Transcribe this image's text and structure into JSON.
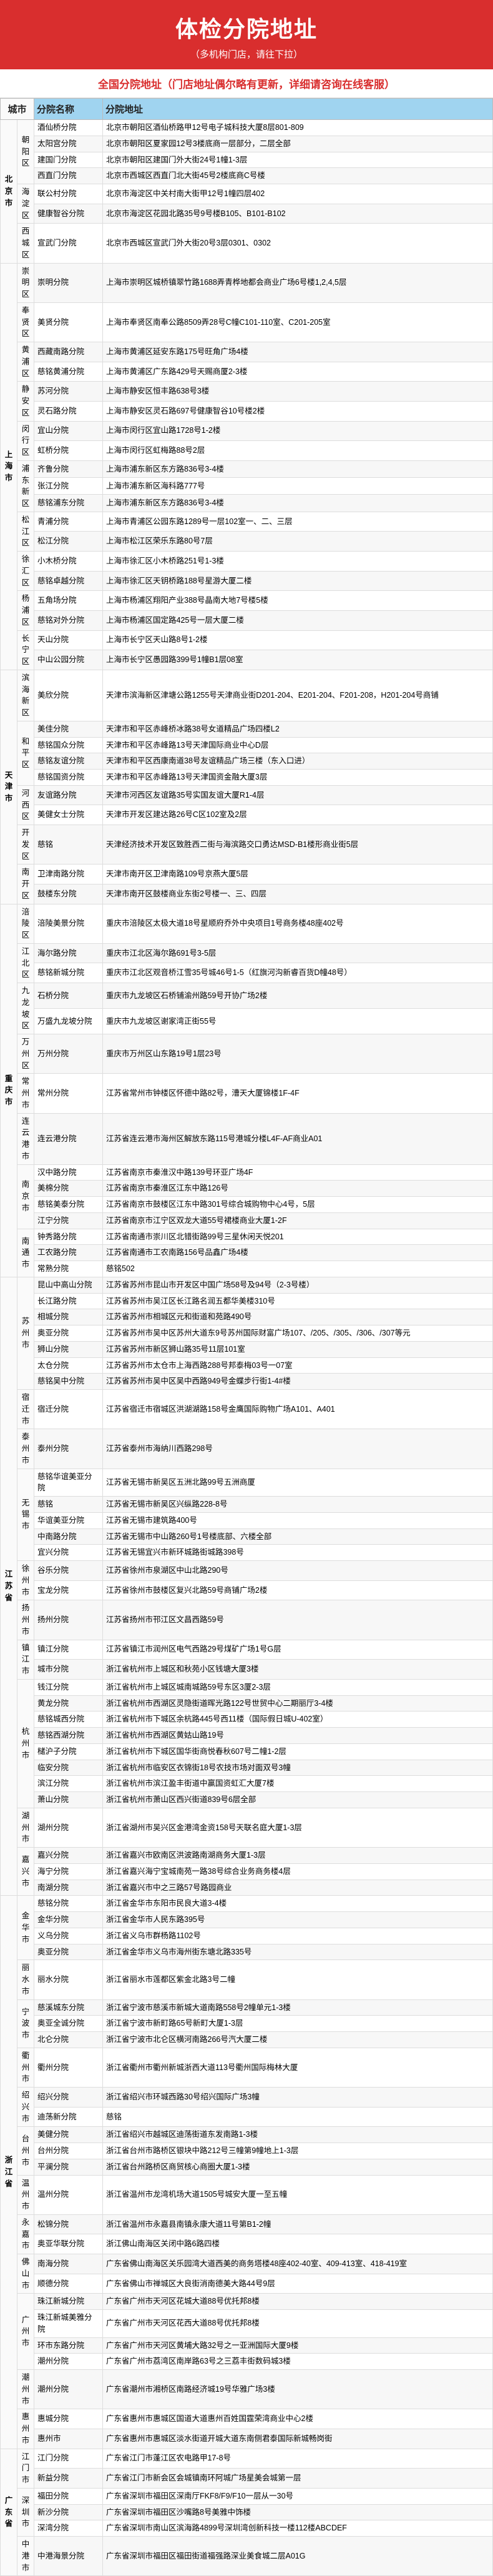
{
  "header": {
    "title": "体检分院地址",
    "subtitle": "（多机构门店，请往下拉）"
  },
  "subheader": "全国分院地址（门店地址偶尔略有更新，详细请咨询在线客服）",
  "columns": [
    "城市",
    "分院名称",
    "分院地址"
  ],
  "rows": [
    {
      "prov": "北京市",
      "city": "朝阳区",
      "branch": "酒仙桥分院",
      "addr": "北京市朝阳区酒仙桥路甲12号电子城科技大厦8层801-809"
    },
    {
      "prov": "",
      "city": "",
      "branch": "太阳宫分院",
      "addr": "北京市朝阳区夏家园12号3楼底商一层部分，二层全部"
    },
    {
      "prov": "",
      "city": "",
      "branch": "建国门分院",
      "addr": "北京市朝阳区建国门外大街24号1幢1-3层"
    },
    {
      "prov": "",
      "city": "",
      "branch": "西直门分院",
      "addr": "北京市西城区西直门北大街45号2楼底商C号楼"
    },
    {
      "prov": "",
      "city": "海淀区",
      "branch": "联公村分院",
      "addr": "北京市海淀区中关村南大街甲12号1幢四层402"
    },
    {
      "prov": "",
      "city": "",
      "branch": "健康智谷分院",
      "addr": "北京市海淀区花园北路35号9号楼B105、B101-B102"
    },
    {
      "prov": "",
      "city": "西城区",
      "branch": "宣武门分院",
      "addr": "北京市西城区宣武门外大街20号3层0301、0302"
    },
    {
      "prov": "上海市",
      "city": "崇明区",
      "branch": "崇明分院",
      "addr": "上海市崇明区城桥镇翠竹路1688弄青桦地都会商业广场6号楼1,2,4,5层"
    },
    {
      "prov": "",
      "city": "奉贤区",
      "branch": "美贤分院",
      "addr": "上海市奉贤区南奉公路8509弄28号C幢C101-110室、C201-205室"
    },
    {
      "prov": "",
      "city": "黄浦区",
      "branch": "西藏南路分院",
      "addr": "上海市黄浦区延安东路175号旺角广场4楼"
    },
    {
      "prov": "",
      "city": "",
      "branch": "慈铭黄浦分院",
      "addr": "上海市黄浦区广东路429号天赐商厦2-3楼"
    },
    {
      "prov": "",
      "city": "静安区",
      "branch": "苏河分院",
      "addr": "上海市静安区恒丰路638号3楼"
    },
    {
      "prov": "",
      "city": "",
      "branch": "灵石路分院",
      "addr": "上海市静安区灵石路697号健康智谷10号楼2楼"
    },
    {
      "prov": "",
      "city": "闵行区",
      "branch": "宜山分院",
      "addr": "上海市闵行区宜山路1728号1-2楼"
    },
    {
      "prov": "",
      "city": "",
      "branch": "虹桥分院",
      "addr": "上海市闵行区虹梅路88号2层"
    },
    {
      "prov": "",
      "city": "浦东新区",
      "branch": "齐鲁分院",
      "addr": "上海市浦东新区东方路836号3-4楼"
    },
    {
      "prov": "",
      "city": "",
      "branch": "张江分院",
      "addr": "上海市浦东新区海科路777号"
    },
    {
      "prov": "",
      "city": "",
      "branch": "慈铭浦东分院",
      "addr": "上海市浦东新区东方路836号3-4楼"
    },
    {
      "prov": "",
      "city": "松江区",
      "branch": "青浦分院",
      "addr": "上海市青浦区公园东路1289号一层102室一、二、三层"
    },
    {
      "prov": "",
      "city": "",
      "branch": "松江分院",
      "addr": "上海市松江区荣乐东路80号7层"
    },
    {
      "prov": "",
      "city": "徐汇区",
      "branch": "小木桥分院",
      "addr": "上海市徐汇区小木桥路251号1-3楼"
    },
    {
      "prov": "",
      "city": "",
      "branch": "慈铭卓越分院",
      "addr": "上海市徐汇区天钥桥路188号星游大厦二楼"
    },
    {
      "prov": "",
      "city": "杨浦区",
      "branch": "五角场分院",
      "addr": "上海市杨浦区翔阳产业388号晶南大地7号楼5楼"
    },
    {
      "prov": "",
      "city": "",
      "branch": "慈铭对外分院",
      "addr": "上海市杨浦区国定路425号一层大厦二楼"
    },
    {
      "prov": "",
      "city": "长宁区",
      "branch": "天山分院",
      "addr": "上海市长宁区天山路8号1-2楼"
    },
    {
      "prov": "",
      "city": "",
      "branch": "中山公园分院",
      "addr": "上海市长宁区愚园路399号1幢B1层08室"
    },
    {
      "prov": "天津市",
      "city": "滨海新区",
      "branch": "美欣分院",
      "addr": "天津市滨海新区津塘公路1255号天津商业街D201-204、E201-204、F201-208，H201-204号商铺"
    },
    {
      "prov": "",
      "city": "和平区",
      "branch": "美佳分院",
      "addr": "天津市和平区赤峰桥冰路38号女道精品广场四楼L2"
    },
    {
      "prov": "",
      "city": "",
      "branch": "慈铭国众分院",
      "addr": "天津市和平区赤峰路13号天津国际商业中心D层"
    },
    {
      "prov": "",
      "city": "",
      "branch": "慈铭友谊分院",
      "addr": "天津市和平区西康南道38号友谊精品广场三楼（东入口进）"
    },
    {
      "prov": "",
      "city": "",
      "branch": "慈铭国资分院",
      "addr": "天津市和平区赤峰路13号天津国资金融大厦3层"
    },
    {
      "prov": "",
      "city": "河西区",
      "branch": "友谊路分院",
      "addr": "天津市河西区友谊路35号实国友谊大厦R1-4层"
    },
    {
      "prov": "",
      "city": "",
      "branch": "美健女士分院",
      "addr": "天津市开发区建达路26号C区102室及2层"
    },
    {
      "prov": "",
      "city": "开发区",
      "branch": "慈铭",
      "addr": "天津经济技术开发区致胜西二街与海滨路交口勇达MSD-B1楼形商业街5层"
    },
    {
      "prov": "",
      "city": "南开区",
      "branch": "卫津南路分院",
      "addr": "天津市南开区卫津南路109号京燕大厦5层"
    },
    {
      "prov": "",
      "city": "",
      "branch": "鼓楼东分院",
      "addr": "天津市南开区鼓楼商业东街2号楼一、三、四层"
    },
    {
      "prov": "重庆市",
      "city": "涪陵区",
      "branch": "涪陵美景分院",
      "addr": "重庆市涪陵区太极大道18号星顺府乔外中央项目1号商务楼48座402号"
    },
    {
      "prov": "",
      "city": "江北区",
      "branch": "海尔路分院",
      "addr": "重庆市江北区海尔路691号3-5层"
    },
    {
      "prov": "",
      "city": "",
      "branch": "慈铭新城分院",
      "addr": "重庆市江北区观音桥江雪35号城46号1-5（红旗河沟新睿百货D幢48号）"
    },
    {
      "prov": "",
      "city": "九龙坡区",
      "branch": "石桥分院",
      "addr": "重庆市九龙坡区石桥铺渝州路59号开协广场2楼"
    },
    {
      "prov": "",
      "city": "",
      "branch": "万盛九龙坡分院",
      "addr": "重庆市九龙坡区谢家湾正街55号"
    },
    {
      "prov": "",
      "city": "万州区",
      "branch": "万州分院",
      "addr": "重庆市万州区山东路19号1层23号"
    },
    {
      "prov": "",
      "city": "常州市",
      "branch": "常州分院",
      "addr": "江苏省常州市钟楼区怀德中路82号，漕天大厦锦楼1F-4F"
    },
    {
      "prov": "",
      "city": "连云港市",
      "branch": "连云港分院",
      "addr": "江苏省连云港市海州区解放东路115号港城分楼L4F-AF商业A01"
    },
    {
      "prov": "",
      "city": "南京市",
      "branch": "汉中路分院",
      "addr": "江苏省南京市秦淮汉中路139号环亚广场4F"
    },
    {
      "prov": "",
      "city": "",
      "branch": "美棉分院",
      "addr": "江苏省南京市秦淮区江东中路126号"
    },
    {
      "prov": "",
      "city": "",
      "branch": "慈铭美泰分院",
      "addr": "江苏省南京市鼓楼区江东中路301号综合城购物中心4号，5层"
    },
    {
      "prov": "",
      "city": "",
      "branch": "江宁分院",
      "addr": "江苏省南京市江宁区双龙大道55号裙楼商业大厦1-2F"
    },
    {
      "prov": "",
      "city": "南通市",
      "branch": "钟秀路分院",
      "addr": "江苏省南通市崇川区北错街路99号三星休闲天悦201"
    },
    {
      "prov": "",
      "city": "",
      "branch": "工农路分院",
      "addr": "江苏省南通市工农南路156号品鑫广场4楼"
    },
    {
      "prov": "",
      "city": "",
      "branch": "常熟分院",
      "addr": "慈铭502"
    },
    {
      "prov": "江苏省",
      "city": "苏州市",
      "branch": "昆山中高山分院",
      "addr": "江苏省苏州市昆山市开发区中国广场58号及94号（2-3号楼）"
    },
    {
      "prov": "",
      "city": "",
      "branch": "长江路分院",
      "addr": "江苏省苏州市吴江区长江路名润五都华美楼310号"
    },
    {
      "prov": "",
      "city": "",
      "branch": "相城分院",
      "addr": "江苏省苏州市相城区元和街道和苑路490号"
    },
    {
      "prov": "",
      "city": "",
      "branch": "奥亚分院",
      "addr": "江苏省苏州市吴中区苏州大道东9号苏州国际财富广场107、/205、/305、/306、/307等元"
    },
    {
      "prov": "",
      "city": "",
      "branch": "狮山分院",
      "addr": "江苏省苏州市新区狮山路35号11层101室"
    },
    {
      "prov": "",
      "city": "",
      "branch": "太仓分院",
      "addr": "江苏省苏州市太仓市上海西路288号邦泰梅03号一07室"
    },
    {
      "prov": "",
      "city": "",
      "branch": "慈铭吴中分院",
      "addr": "江苏省苏州市吴中区吴中西路949号金蝶步行街1-4#楼"
    },
    {
      "prov": "",
      "city": "宿迁市",
      "branch": "宿迁分院",
      "addr": "江苏省宿迁市宿城区洪湖湖路158号金鹰国际购物广场A101、A401"
    },
    {
      "prov": "",
      "city": "泰州市",
      "branch": "泰州分院",
      "addr": "江苏省泰州市海纳川西路298号"
    },
    {
      "prov": "",
      "city": "无锡市",
      "branch": "慈铭华谊美亚分院",
      "addr": "江苏省无锡市新吴区五洲北路99号五洲商厦"
    },
    {
      "prov": "",
      "city": "",
      "branch": "慈铭",
      "addr": "江苏省无锡市新吴区兴纵路228-8号"
    },
    {
      "prov": "",
      "city": "",
      "branch": "华谊美亚分院",
      "addr": "江苏省无锡市建筑路400号"
    },
    {
      "prov": "",
      "city": "",
      "branch": "中南路分院",
      "addr": "江苏省无锡市中山路260号1号楼底部、六楼全部"
    },
    {
      "prov": "",
      "city": "",
      "branch": "宜兴分院",
      "addr": "江苏省无锡宜兴市新环城路街城路398号"
    },
    {
      "prov": "",
      "city": "徐州市",
      "branch": "谷乐分院",
      "addr": "江苏省徐州市泉湖区中山北路290号"
    },
    {
      "prov": "",
      "city": "",
      "branch": "宝龙分院",
      "addr": "江苏省徐州市鼓楼区复兴北路59号商铺广场2楼"
    },
    {
      "prov": "",
      "city": "扬州市",
      "branch": "扬州分院",
      "addr": "江苏省扬州市邗江区文昌西路59号"
    },
    {
      "prov": "",
      "city": "镇江市",
      "branch": "镇江分院",
      "addr": "江苏省镇江市润州区电气西路29号煤矿广场1号G层"
    },
    {
      "prov": "",
      "city": "",
      "branch": "城市分院",
      "addr": "浙江省杭州市上城区和秋苑小区钱塘大厦3楼"
    },
    {
      "prov": "",
      "city": "杭州市",
      "branch": "钱江分院",
      "addr": "浙江省杭州市上城区城南城路59号东区3厦2-3层"
    },
    {
      "prov": "",
      "city": "",
      "branch": "黄龙分院",
      "addr": "浙江省杭州市西湖区灵隐街道晖光路122号世贸中心二期丽厅3-4楼"
    },
    {
      "prov": "",
      "city": "",
      "branch": "慈铭城西分院",
      "addr": "浙江省杭州市下城区余杭路445号西11楼（国际假日城U-402室）"
    },
    {
      "prov": "",
      "city": "",
      "branch": "慈铭西湖分院",
      "addr": "浙江省杭州市西湖区黄姑山路19号"
    },
    {
      "prov": "",
      "city": "",
      "branch": "槠沪子分院",
      "addr": "浙江省杭州市下城区国华街商悦春秋607号二幢1-2层"
    },
    {
      "prov": "",
      "city": "",
      "branch": "临安分院",
      "addr": "浙江省杭州市临安区衣锦街18号农技市场对面双号3幢"
    },
    {
      "prov": "",
      "city": "",
      "branch": "滨江分院",
      "addr": "浙江省杭州市滨江盈丰街道中赢国资虹汇大厦7楼"
    },
    {
      "prov": "",
      "city": "",
      "branch": "萧山分院",
      "addr": "浙江省杭州市萧山区西兴街道839号6层全部"
    },
    {
      "prov": "",
      "city": "湖州市",
      "branch": "湖州分院",
      "addr": "浙江省湖州市吴兴区金港湾金资158号天联名庭大厦1-3层"
    },
    {
      "prov": "",
      "city": "嘉兴市",
      "branch": "嘉兴分院",
      "addr": "浙江省嘉兴市欧南区洪波路南湖商务大厦1-3层"
    },
    {
      "prov": "",
      "city": "",
      "branch": "海宁分院",
      "addr": "浙江省嘉兴海宁宝城南苑一路38号综合业务商务楼4层"
    },
    {
      "prov": "",
      "city": "",
      "branch": "南湖分院",
      "addr": "浙江省嘉兴市中之三路57号路园商业"
    },
    {
      "prov": "浙江省",
      "city": "金华市",
      "branch": "慈铭分院",
      "addr": "浙江省金华市东阳市民良大道3-4楼"
    },
    {
      "prov": "",
      "city": "",
      "branch": "金华分院",
      "addr": "浙江省金华市人民东路395号"
    },
    {
      "prov": "",
      "city": "",
      "branch": "义乌分院",
      "addr": "浙江省义乌市群杨路1102号"
    },
    {
      "prov": "",
      "city": "",
      "branch": "奥亚分院",
      "addr": "浙江省金华市义乌市海州街东塘北路335号"
    },
    {
      "prov": "",
      "city": "丽水市",
      "branch": "丽水分院",
      "addr": "浙江省丽水市莲都区紫金北路3号二幢"
    },
    {
      "prov": "",
      "city": "宁波市",
      "branch": "慈溪城东分院",
      "addr": "浙江省宁波市慈溪市新城大道南路558号2幢单元1-3楼"
    },
    {
      "prov": "",
      "city": "",
      "branch": "奥亚全诚分院",
      "addr": "浙江省宁波市新町路65号新町大厦1-3层"
    },
    {
      "prov": "",
      "city": "",
      "branch": "北仑分院",
      "addr": "浙江省宁波市北仑区横河南路266号汽大厦二楼"
    },
    {
      "prov": "",
      "city": "衢州市",
      "branch": "衢州分院",
      "addr": "浙江省衢州市衢州新城浙西大道113号衢州国际梅林大厦"
    },
    {
      "prov": "",
      "city": "绍兴市",
      "branch": "绍兴分院",
      "addr": "浙江省绍兴市环城西路30号绍兴国际广场3幢"
    },
    {
      "prov": "",
      "city": "",
      "branch": "迪荡新分院",
      "addr": "慈铭"
    },
    {
      "prov": "",
      "city": "台州市",
      "branch": "美健分院",
      "addr": "浙江省绍兴市越城区迪荡街道东发南路1-3楼"
    },
    {
      "prov": "",
      "city": "",
      "branch": "台州分院",
      "addr": "浙江省台州市路桥区银块中路212号三幢第9幢地上1-3层"
    },
    {
      "prov": "",
      "city": "",
      "branch": "平澜分院",
      "addr": "浙江省台州路桥区商贸核心商圈大厦1-3楼"
    },
    {
      "prov": "",
      "city": "温州市",
      "branch": "温州分院",
      "addr": "浙江省温州市龙湾机场大道1505号城安大厦一至五幢"
    },
    {
      "prov": "",
      "city": "永嘉市",
      "branch": "松锦分院",
      "addr": "浙江省温州市永嘉县南镇永康大道11号第B1-2幢"
    },
    {
      "prov": "",
      "city": "",
      "branch": "奥亚华联分院",
      "addr": "浙江佛山南海区关闭中路6路四楼"
    },
    {
      "prov": "",
      "city": "佛山市",
      "branch": "南海分院",
      "addr": "广东省佛山南海区关乐园湾大道西美的商务塔楼48座402-40室、409-413室、418-419室"
    },
    {
      "prov": "",
      "city": "",
      "branch": "顺德分院",
      "addr": "广东省佛山市禅城区大良街消南德美大路44号9层"
    },
    {
      "prov": "",
      "city": "广州市",
      "branch": "珠江新城分院",
      "addr": "广东省广州市天河区花城大道88号优托邦8楼"
    },
    {
      "prov": "",
      "city": "",
      "branch": "珠江新城美雅分院",
      "addr": "广东省广州市天河区花西大道88号优托邦8楼"
    },
    {
      "prov": "",
      "city": "",
      "branch": "环市东路分院",
      "addr": "广东省广州市天河区黄埔大路32号之一亚洲国际大厦9楼"
    },
    {
      "prov": "",
      "city": "",
      "branch": "潮州分院",
      "addr": "广东省广州市荔湾区南岸路63号之三荔丰街数码城3楼"
    },
    {
      "prov": "",
      "city": "潮州市",
      "branch": "潮州分院",
      "addr": "广东省潮州市湘桥区南路经济城19号华雅广场3楼"
    },
    {
      "prov": "",
      "city": "惠州市",
      "branch": "惠城分院",
      "addr": "广东省惠州市惠城区国道大道惠州百姓国霆荣湾商业中心2楼"
    },
    {
      "prov": "",
      "city": "",
      "branch": "惠州市",
      "addr": "广东省惠州市惠城区淡水街道开城大道东南侧君泰国际新城畅岗街"
    },
    {
      "prov": "广东省",
      "city": "江门市",
      "branch": "江门分院",
      "addr": "广东省江门市蓬江区农电路甲17-8号"
    },
    {
      "prov": "",
      "city": "",
      "branch": "新益分院",
      "addr": "广东省江门市新会区会城镇南环阿城广场星美会城第一层"
    },
    {
      "prov": "",
      "city": "深圳市",
      "branch": "福田分院",
      "addr": "广东省深圳市福田区深南厅FKF8/F9/F10一层从一30号"
    },
    {
      "prov": "",
      "city": "",
      "branch": "新沙分院",
      "addr": "广东省深圳市福田区沙嘴路8号美雅中饰楼"
    },
    {
      "prov": "",
      "city": "",
      "branch": "深湾分院",
      "addr": "广东省深圳市南山区滨海路4899号深圳湾创新科技一楼112楼ABCDEF"
    },
    {
      "prov": "",
      "city": "中港市",
      "branch": "中港海景分院",
      "addr": "广东省深圳市福田区福田街道福强路深业美食城二层A01G"
    }
  ]
}
